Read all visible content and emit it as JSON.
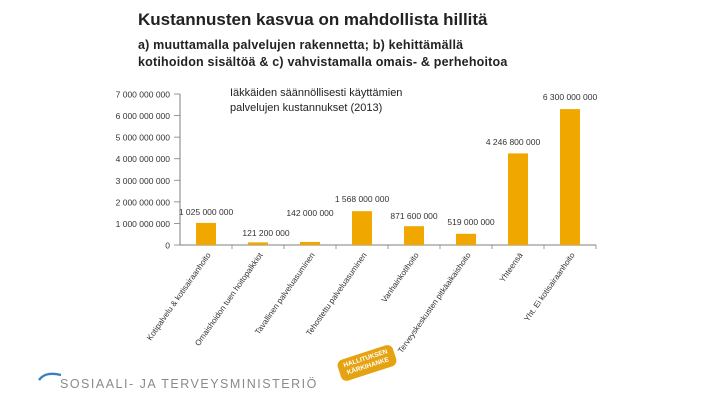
{
  "header": {
    "title": "Kustannusten kasvua on mahdollista hillitä",
    "subtitle_line1": "a) muuttamalla  palvelujen rakennetta; b) kehittämällä",
    "subtitle_line2": "kotihoidon sisältöä & c) vahvistamalla omais- & perhehoitoa"
  },
  "footer": {
    "ministry": "SOSIAALI- JA TERVEYSMINISTERIÖ",
    "stamp_line1": "HALLITUKSEN",
    "stamp_line2": "KÄRKIHANKE"
  },
  "colors": {
    "bar": "#f0a800",
    "axis": "#7f7f7f",
    "text": "#333333",
    "accent": "#e5a312"
  },
  "chart_data": {
    "type": "bar",
    "title": "Iäkkäiden säännöllisesti käyttämien palvelujen kustannukset (2013)",
    "title_line1": "Iäkkäiden säännöllisesti käyttämien",
    "title_line2": "palvelujen kustannukset (2013)",
    "ylim": [
      0,
      7000000
    ],
    "yticks": [
      0,
      1000000,
      2000000,
      3000000,
      4000000,
      5000000,
      6000000,
      7000000
    ],
    "ytick_labels": [
      "0",
      "1 000 000 000",
      "2 000 000 000",
      "3 000 000 000",
      "4 000 000 000",
      "5 000 000 000",
      "6 000 000 000",
      "7 000 000 000"
    ],
    "categories": [
      "Kotipalvelu & kotisairaanhoito",
      "Omaishoidon tuen hoitopalkkiot",
      "Tavallinen palveluasuminen",
      "Tehostettu palveluasuminen",
      "Vanhainkotihoito",
      "Terveyskeskusten pitkäaikaishoito",
      "Yhteensä",
      "Yht. Ei kotisairaanhoito"
    ],
    "values": [
      1025000,
      121200,
      142000,
      1568000,
      871600,
      519000,
      4246800,
      6300000
    ],
    "value_labels": [
      "1 025 000 000",
      "121 200 000",
      "142 000 000",
      "1 568 000 000",
      "871 600 000",
      "519 000 000",
      "4 246 800 000",
      "6 300 000 000"
    ]
  }
}
